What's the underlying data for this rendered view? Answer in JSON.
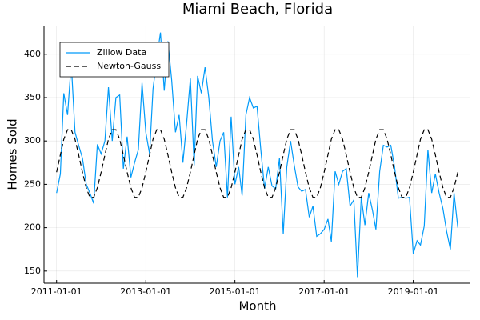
{
  "chart_data": {
    "type": "line",
    "title": "Miami Beach, Florida",
    "x_label": "Month",
    "y_label": "Homes Sold",
    "x": [
      "2011-01-01",
      "2011-02-01",
      "2011-03-01",
      "2011-04-01",
      "2011-05-01",
      "2011-06-01",
      "2011-07-01",
      "2011-08-01",
      "2011-09-01",
      "2011-10-01",
      "2011-11-01",
      "2011-12-01",
      "2012-01-01",
      "2012-02-01",
      "2012-03-01",
      "2012-04-01",
      "2012-05-01",
      "2012-06-01",
      "2012-07-01",
      "2012-08-01",
      "2012-09-01",
      "2012-10-01",
      "2012-11-01",
      "2012-12-01",
      "2013-01-01",
      "2013-02-01",
      "2013-03-01",
      "2013-04-01",
      "2013-05-01",
      "2013-06-01",
      "2013-07-01",
      "2013-08-01",
      "2013-09-01",
      "2013-10-01",
      "2013-11-01",
      "2013-12-01",
      "2014-01-01",
      "2014-02-01",
      "2014-03-01",
      "2014-04-01",
      "2014-05-01",
      "2014-06-01",
      "2014-07-01",
      "2014-08-01",
      "2014-09-01",
      "2014-10-01",
      "2014-11-01",
      "2014-12-01",
      "2015-01-01",
      "2015-02-01",
      "2015-03-01",
      "2015-04-01",
      "2015-05-01",
      "2015-06-01",
      "2015-07-01",
      "2015-08-01",
      "2015-09-01",
      "2015-10-01",
      "2015-11-01",
      "2015-12-01",
      "2016-01-01",
      "2016-02-01",
      "2016-03-01",
      "2016-04-01",
      "2016-05-01",
      "2016-06-01",
      "2016-07-01",
      "2016-08-01",
      "2016-09-01",
      "2016-10-01",
      "2016-11-01",
      "2016-12-01",
      "2017-01-01",
      "2017-02-01",
      "2017-03-01",
      "2017-04-01",
      "2017-05-01",
      "2017-06-01",
      "2017-07-01",
      "2017-08-01",
      "2017-09-01",
      "2017-10-01",
      "2017-11-01",
      "2017-12-01",
      "2018-01-01",
      "2018-02-01",
      "2018-03-01",
      "2018-04-01",
      "2018-05-01",
      "2018-06-01",
      "2018-07-01",
      "2018-08-01",
      "2018-09-01",
      "2018-10-01",
      "2018-11-01",
      "2018-12-01",
      "2019-01-01",
      "2019-02-01",
      "2019-03-01",
      "2019-04-01",
      "2019-05-01",
      "2019-06-01",
      "2019-07-01",
      "2019-08-01",
      "2019-09-01",
      "2019-10-01",
      "2019-11-01",
      "2019-12-01",
      "2020-01-01"
    ],
    "series": [
      {
        "name": "Zillow Data",
        "color": "#009af9",
        "dash": false,
        "values": [
          240,
          262,
          355,
          330,
          390,
          310,
          295,
          280,
          250,
          240,
          228,
          296,
          285,
          300,
          362,
          300,
          350,
          353,
          268,
          305,
          258,
          275,
          290,
          367,
          310,
          285,
          360,
          395,
          425,
          358,
          415,
          370,
          310,
          330,
          275,
          320,
          372,
          272,
          375,
          355,
          385,
          350,
          300,
          270,
          300,
          310,
          235,
          328,
          250,
          270,
          237,
          330,
          350,
          338,
          340,
          290,
          245,
          270,
          248,
          245,
          280,
          193,
          270,
          300,
          272,
          247,
          242,
          244,
          212,
          225,
          190,
          193,
          198,
          210,
          184,
          265,
          250,
          265,
          268,
          225,
          232,
          143,
          235,
          203,
          240,
          220,
          198,
          265,
          295,
          293,
          295,
          270,
          234,
          235,
          234,
          235,
          170,
          185,
          180,
          202,
          290,
          240,
          262,
          240,
          222,
          196,
          175,
          240,
          200
        ]
      },
      {
        "name": "Newton-Gauss",
        "color": "#000000",
        "dash": true,
        "values": [
          264,
          284,
          302,
          313,
          313,
          302,
          284,
          264,
          246,
          235,
          235,
          246,
          264,
          284,
          302,
          313,
          313,
          302,
          284,
          264,
          246,
          235,
          235,
          246,
          264,
          284,
          302,
          313,
          313,
          302,
          284,
          264,
          246,
          235,
          235,
          246,
          264,
          284,
          302,
          313,
          313,
          302,
          284,
          264,
          246,
          235,
          235,
          246,
          264,
          284,
          302,
          313,
          313,
          302,
          284,
          264,
          246,
          235,
          235,
          246,
          264,
          284,
          302,
          313,
          313,
          302,
          284,
          264,
          246,
          235,
          235,
          246,
          264,
          284,
          302,
          313,
          313,
          302,
          284,
          264,
          246,
          235,
          235,
          246,
          264,
          284,
          302,
          313,
          313,
          302,
          284,
          264,
          246,
          235,
          235,
          246,
          264,
          284,
          302,
          313,
          313,
          302,
          284,
          264,
          246,
          235,
          235,
          246,
          264
        ]
      }
    ],
    "xlim": [
      "2010-09-20",
      "2020-04-13"
    ],
    "xticks": [
      "2011-01-01",
      "2013-01-01",
      "2015-01-01",
      "2017-01-01",
      "2019-01-01"
    ],
    "ylim": [
      136,
      433
    ],
    "yticks": [
      150,
      200,
      250,
      300,
      350,
      400
    ],
    "grid": true,
    "legend": "top-left"
  }
}
